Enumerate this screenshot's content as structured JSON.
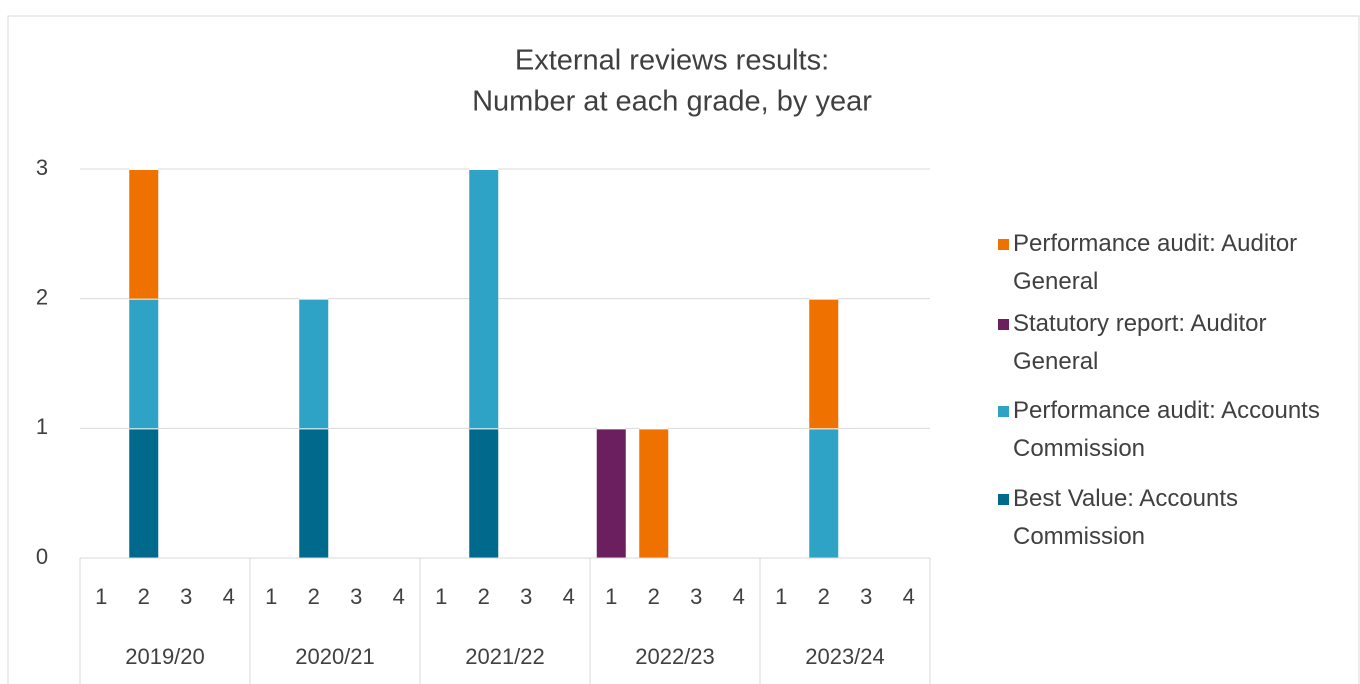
{
  "chart_data": {
    "type": "stacked_bar",
    "title": [
      "External reviews results:",
      "Number at each grade, by year"
    ],
    "groups": [
      "2019/20",
      "2020/21",
      "2021/22",
      "2022/23",
      "2023/24"
    ],
    "categories": [
      "1",
      "2",
      "3",
      "4",
      "1",
      "2",
      "3",
      "4",
      "1",
      "2",
      "3",
      "4",
      "1",
      "2",
      "3",
      "4",
      "1",
      "2",
      "3",
      "4"
    ],
    "series": [
      {
        "name": "Best Value: Accounts Commission",
        "color": "#00698c",
        "values": [
          0,
          1,
          0,
          0,
          0,
          1,
          0,
          0,
          0,
          1,
          0,
          0,
          0,
          0,
          0,
          0,
          0,
          0,
          0,
          0
        ]
      },
      {
        "name": "Performance audit: Accounts Commission",
        "color": "#2ea3c5",
        "values": [
          0,
          1,
          0,
          0,
          0,
          1,
          0,
          0,
          0,
          2,
          0,
          0,
          0,
          0,
          0,
          0,
          0,
          1,
          0,
          0
        ]
      },
      {
        "name": "Statutory report: Auditor General",
        "color": "#6b1f5e",
        "values": [
          0,
          0,
          0,
          0,
          0,
          0,
          0,
          0,
          0,
          0,
          0,
          0,
          1,
          0,
          0,
          0,
          0,
          0,
          0,
          0
        ]
      },
      {
        "name": "Performance audit: Auditor General",
        "color": "#ef7100",
        "values": [
          0,
          1,
          0,
          0,
          0,
          0,
          0,
          0,
          0,
          0,
          0,
          0,
          0,
          1,
          0,
          0,
          0,
          1,
          0,
          0
        ]
      }
    ],
    "ylim": [
      0,
      3
    ],
    "yticks": [
      0,
      1,
      2,
      3
    ],
    "grid": true,
    "legend": "right"
  }
}
